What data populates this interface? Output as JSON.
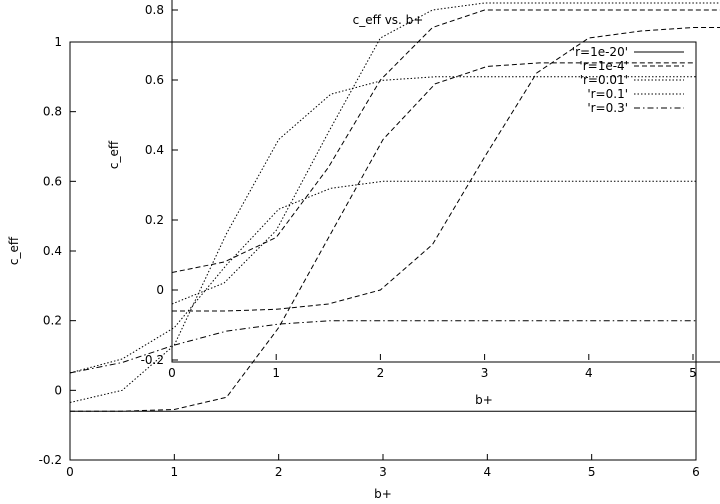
{
  "chart_data": [
    {
      "type": "line",
      "title": "",
      "xlabel": "b+",
      "ylabel": "c_eff",
      "xlim": [
        0,
        6
      ],
      "ylim": [
        -0.2,
        1
      ],
      "x_ticks": [
        "0",
        "1",
        "2",
        "3",
        "4",
        "5",
        "6"
      ],
      "y_ticks": [
        "-0.2",
        "0",
        "0.2",
        "0.4",
        "0.6",
        "0.8",
        "1"
      ],
      "grid": false,
      "legend": "top-right",
      "series": [
        {
          "name": "'r=1e-20'",
          "style": "solid",
          "x": [
            0,
            6
          ],
          "y": [
            -0.06,
            -0.06
          ]
        },
        {
          "name": "'r=1e-4'",
          "style": "dashed",
          "x": [
            0,
            0.5,
            1,
            1.5,
            2,
            2.5,
            3,
            3.5,
            4,
            4.5,
            5,
            5.5,
            6
          ],
          "y": [
            -0.06,
            -0.06,
            -0.055,
            -0.02,
            0.18,
            0.45,
            0.72,
            0.88,
            0.93,
            0.94,
            0.94,
            0.94,
            0.94
          ]
        },
        {
          "name": "'r=0.01'",
          "style": "dotted",
          "x": [
            0,
            0.5,
            1,
            1.5,
            2,
            2.5,
            3,
            3.5,
            4,
            4.5,
            5,
            5.5,
            6
          ],
          "y": [
            -0.035,
            0.0,
            0.13,
            0.45,
            0.72,
            0.85,
            0.89,
            0.9,
            0.9,
            0.9,
            0.9,
            0.9,
            0.9
          ]
        },
        {
          "name": "'r=0.1'",
          "style": "dotted",
          "x": [
            0,
            0.5,
            1,
            1.5,
            2,
            2.5,
            3,
            3.5,
            4,
            4.5,
            5,
            5.5,
            6
          ],
          "y": [
            0.05,
            0.09,
            0.18,
            0.36,
            0.52,
            0.58,
            0.6,
            0.6,
            0.6,
            0.6,
            0.6,
            0.6,
            0.6
          ]
        },
        {
          "name": "'r=0.3'",
          "style": "dashdot",
          "x": [
            0,
            0.5,
            1,
            1.5,
            2,
            2.5,
            3,
            3.5,
            4,
            4.5,
            5,
            5.5,
            6
          ],
          "y": [
            0.05,
            0.08,
            0.13,
            0.17,
            0.19,
            0.2,
            0.2,
            0.2,
            0.2,
            0.2,
            0.2,
            0.2,
            0.2
          ]
        }
      ]
    },
    {
      "type": "line",
      "title": "c_eff vs. b+",
      "xlabel": "b+",
      "ylabel": "c_eff",
      "xlim": [
        0,
        5
      ],
      "ylim": [
        -0.2,
        0.8
      ],
      "x_ticks": [
        "0",
        "1",
        "2",
        "3",
        "4",
        "5"
      ],
      "y_ticks": [
        "-0.2",
        "0",
        "0.2",
        "0.4",
        "0.6",
        "0.8"
      ],
      "grid": false,
      "series": [
        {
          "style": "dashed",
          "x": [
            0,
            0.5,
            1,
            1.5,
            2,
            2.5,
            3,
            3.5,
            4,
            4.5,
            5,
            5.5
          ],
          "y": [
            -0.06,
            -0.06,
            -0.055,
            -0.04,
            0.0,
            0.13,
            0.38,
            0.62,
            0.72,
            0.74,
            0.75,
            0.75
          ]
        },
        {
          "style": "dotted",
          "x": [
            0,
            0.5,
            1,
            1.5,
            2,
            2.5,
            3,
            3.5,
            4,
            4.5,
            5,
            5.5
          ],
          "y": [
            -0.04,
            0.02,
            0.17,
            0.45,
            0.72,
            0.8,
            0.82,
            0.82,
            0.82,
            0.82,
            0.82,
            0.82
          ]
        },
        {
          "style": "dashed",
          "x": [
            0,
            0.5,
            1,
            1.5,
            2,
            2.5,
            3,
            3.5,
            4,
            4.5,
            5,
            5.5
          ],
          "y": [
            0.05,
            0.08,
            0.15,
            0.35,
            0.6,
            0.75,
            0.8,
            0.8,
            0.8,
            0.8,
            0.8,
            0.8
          ]
        }
      ]
    }
  ]
}
